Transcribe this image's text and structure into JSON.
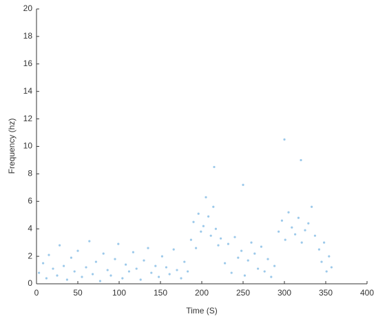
{
  "chart_data": {
    "type": "scatter",
    "x_label": "Time (S)",
    "y_label": "Frequency (hz)",
    "color": "#5aa5dc",
    "xlim": [
      0,
      400
    ],
    "xticks": [
      0,
      50,
      100,
      150,
      200,
      250,
      300,
      350,
      400
    ],
    "ylim": [
      0,
      20
    ],
    "yticks": [
      0,
      2,
      4,
      6,
      8,
      10,
      12,
      14,
      16,
      18,
      20
    ],
    "x": [
      3,
      8,
      12,
      15,
      20,
      25,
      28,
      33,
      37,
      42,
      46,
      50,
      55,
      60,
      64,
      68,
      72,
      77,
      81,
      86,
      90,
      95,
      99,
      104,
      108,
      112,
      117,
      121,
      126,
      130,
      135,
      139,
      144,
      148,
      152,
      157,
      161,
      166,
      170,
      175,
      179,
      183,
      187,
      190,
      193,
      196,
      199,
      202,
      205,
      208,
      211,
      214,
      217,
      220,
      223,
      228,
      232,
      236,
      240,
      244,
      248,
      252,
      256,
      260,
      264,
      268,
      272,
      276,
      280,
      284,
      288,
      293,
      297,
      301,
      305,
      309,
      313,
      317,
      321,
      325,
      329,
      333,
      337,
      342,
      345,
      348,
      351,
      354,
      357,
      215,
      250,
      300,
      320
    ],
    "y": [
      0.8,
      1.5,
      0.4,
      2.1,
      1.1,
      0.6,
      2.8,
      1.3,
      0.3,
      1.9,
      0.9,
      2.4,
      0.5,
      1.2,
      3.1,
      0.7,
      1.6,
      0.2,
      2.2,
      1.0,
      0.6,
      1.8,
      2.9,
      0.4,
      1.4,
      0.9,
      2.3,
      1.1,
      0.3,
      1.7,
      2.6,
      0.8,
      1.3,
      0.5,
      2.0,
      1.2,
      0.7,
      2.5,
      1.0,
      0.4,
      1.6,
      0.9,
      3.2,
      4.5,
      2.6,
      5.1,
      3.8,
      4.2,
      6.3,
      4.9,
      3.5,
      5.6,
      4.0,
      2.8,
      3.3,
      1.5,
      2.9,
      0.8,
      3.4,
      1.9,
      2.4,
      0.6,
      1.7,
      3.0,
      2.2,
      1.1,
      2.7,
      0.9,
      1.8,
      0.5,
      1.3,
      3.8,
      4.6,
      3.2,
      5.2,
      4.1,
      3.6,
      4.8,
      3.0,
      3.9,
      4.4,
      5.6,
      3.5,
      2.5,
      1.6,
      3.0,
      0.9,
      2.0,
      1.2,
      8.5,
      7.2,
      10.5,
      9.0
    ]
  }
}
